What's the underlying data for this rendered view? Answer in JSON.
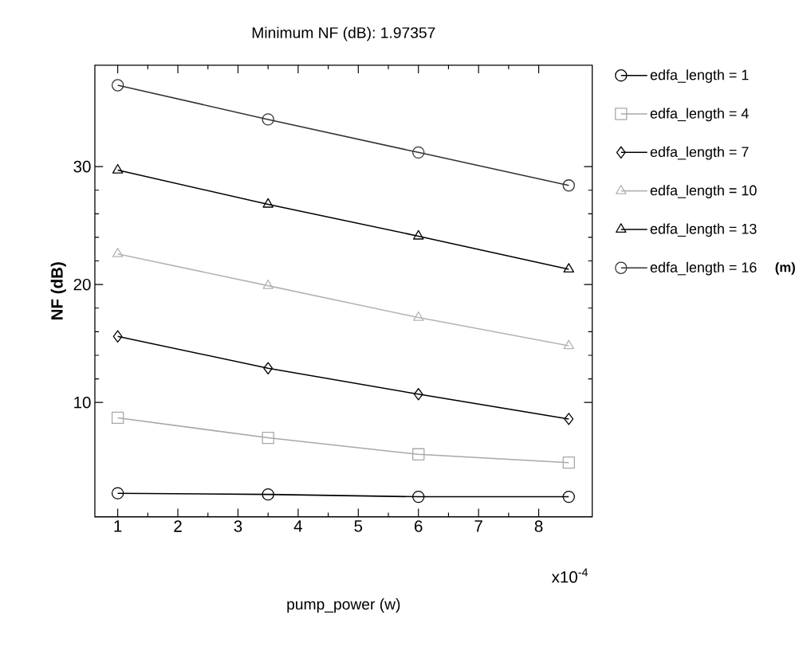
{
  "chart_data": {
    "type": "line",
    "title": "Minimum NF (dB): 1.97357",
    "xlabel": "pump_power (w)",
    "ylabel": "NF (dB)",
    "x": [
      1,
      3.5,
      6,
      8.5
    ],
    "series": [
      {
        "name": "edfa_length = 1",
        "color": "#000000",
        "marker": "circle",
        "values": [
          2.3,
          2.2,
          2.0,
          2.0
        ]
      },
      {
        "name": "edfa_length = 4",
        "color": "#a8a8a8",
        "marker": "square",
        "values": [
          8.7,
          7.0,
          5.6,
          4.9
        ]
      },
      {
        "name": "edfa_length = 7",
        "color": "#000000",
        "marker": "diamond",
        "values": [
          15.6,
          12.9,
          10.7,
          8.6
        ]
      },
      {
        "name": "edfa_length = 10",
        "color": "#b4b4b4",
        "marker": "triangle",
        "values": [
          22.6,
          19.9,
          17.2,
          14.8
        ]
      },
      {
        "name": "edfa_length = 13",
        "color": "#000000",
        "marker": "triangle",
        "values": [
          29.7,
          26.8,
          24.1,
          21.3
        ]
      },
      {
        "name": "edfa_length = 16",
        "color": "#333333",
        "marker": "circle",
        "values": [
          36.9,
          34.0,
          31.2,
          28.4
        ]
      }
    ],
    "xlim": [
      0.62,
      8.89
    ],
    "ylim": [
      0.3,
      38.6
    ],
    "xticks": [
      1,
      2,
      3,
      4,
      5,
      6,
      7,
      8
    ],
    "yticks": [
      10,
      20,
      30
    ],
    "legend": "right",
    "grid": false,
    "line_style": "solid",
    "annotations": [
      "x10$^{-4}$",
      "(m)"
    ]
  }
}
